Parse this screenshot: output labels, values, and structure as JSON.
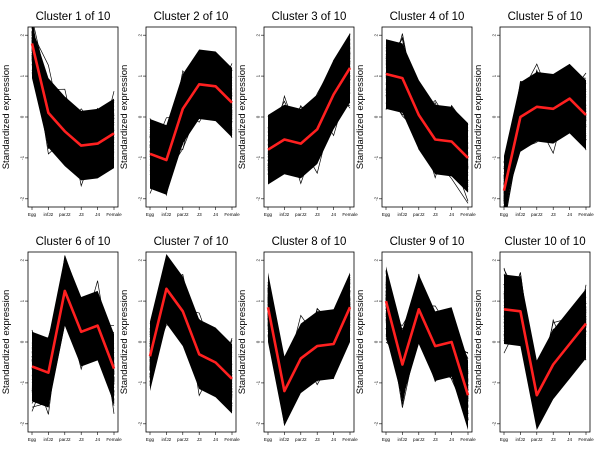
{
  "figure": {
    "ylabel": "Standardized expression"
  },
  "chart_data": [
    {
      "type": "line",
      "title": "Cluster 1 of 10",
      "ylabel": "Standardized expression",
      "categories": [
        "Egg",
        "infJ2",
        "parJ2",
        "J3",
        "J4",
        "Female"
      ],
      "yticks": [
        -2,
        -1,
        0,
        1,
        2
      ],
      "ylim": [
        -2.2,
        2.2
      ],
      "series": [
        {
          "name": "cluster mean",
          "color": "#ff2020",
          "values": [
            1.8,
            0.1,
            -0.35,
            -0.7,
            -0.65,
            -0.4
          ]
        }
      ]
    },
    {
      "type": "line",
      "title": "Cluster 2 of 10",
      "ylabel": "Standardized expression",
      "categories": [
        "Egg",
        "infJ2",
        "parJ2",
        "J3",
        "J4",
        "Female"
      ],
      "yticks": [
        -2,
        -1,
        0,
        1,
        2
      ],
      "ylim": [
        -2.2,
        2.2
      ],
      "series": [
        {
          "name": "cluster mean",
          "color": "#ff2020",
          "values": [
            -0.9,
            -1.05,
            0.2,
            0.8,
            0.75,
            0.35
          ]
        }
      ]
    },
    {
      "type": "line",
      "title": "Cluster 3 of 10",
      "ylabel": "Standardized expression",
      "categories": [
        "Egg",
        "infJ2",
        "parJ2",
        "J3",
        "J4",
        "Female"
      ],
      "yticks": [
        -2,
        -1,
        0,
        1,
        2
      ],
      "ylim": [
        -2.2,
        2.2
      ],
      "series": [
        {
          "name": "cluster mean",
          "color": "#ff2020",
          "values": [
            -0.8,
            -0.55,
            -0.65,
            -0.3,
            0.55,
            1.2
          ]
        }
      ]
    },
    {
      "type": "line",
      "title": "Cluster 4 of 10",
      "ylabel": "Standardized expression",
      "categories": [
        "Egg",
        "infJ2",
        "parJ2",
        "J3",
        "J4",
        "Female"
      ],
      "yticks": [
        -2,
        -1,
        0,
        1,
        2
      ],
      "ylim": [
        -2.2,
        2.2
      ],
      "series": [
        {
          "name": "cluster mean",
          "color": "#ff2020",
          "values": [
            1.05,
            0.95,
            0.05,
            -0.55,
            -0.6,
            -1.0
          ]
        }
      ]
    },
    {
      "type": "line",
      "title": "Cluster 5 of 10",
      "ylabel": "Standardized expression",
      "categories": [
        "Egg",
        "infJ2",
        "parJ2",
        "J3",
        "J4",
        "Female"
      ],
      "yticks": [
        -2,
        -1,
        0,
        1,
        2
      ],
      "ylim": [
        -2.2,
        2.2
      ],
      "series": [
        {
          "name": "cluster mean",
          "color": "#ff2020",
          "values": [
            -1.8,
            0.0,
            0.25,
            0.2,
            0.45,
            0.05
          ]
        }
      ]
    },
    {
      "type": "line",
      "title": "Cluster 6 of 10",
      "ylabel": "Standardized expression",
      "categories": [
        "Egg",
        "infJ2",
        "parJ2",
        "J3",
        "J4",
        "Female"
      ],
      "yticks": [
        -2,
        -1,
        0,
        1,
        2
      ],
      "ylim": [
        -2.2,
        2.2
      ],
      "series": [
        {
          "name": "cluster mean",
          "color": "#ff2020",
          "values": [
            -0.6,
            -0.75,
            1.25,
            0.25,
            0.4,
            -0.65
          ]
        }
      ]
    },
    {
      "type": "line",
      "title": "Cluster 7 of 10",
      "ylabel": "Standardized expression",
      "categories": [
        "Egg",
        "infJ2",
        "parJ2",
        "J3",
        "J4",
        "Female"
      ],
      "yticks": [
        -2,
        -1,
        0,
        1,
        2
      ],
      "ylim": [
        -2.2,
        2.2
      ],
      "series": [
        {
          "name": "cluster mean",
          "color": "#ff2020",
          "values": [
            -0.35,
            1.3,
            0.75,
            -0.3,
            -0.5,
            -0.9
          ]
        }
      ]
    },
    {
      "type": "line",
      "title": "Cluster 8 of 10",
      "ylabel": "Standardized expression",
      "categories": [
        "Egg",
        "infJ2",
        "parJ2",
        "J3",
        "J4",
        "Female"
      ],
      "yticks": [
        -2,
        -1,
        0,
        1,
        2
      ],
      "ylim": [
        -2.2,
        2.2
      ],
      "series": [
        {
          "name": "cluster mean",
          "color": "#ff2020",
          "values": [
            0.85,
            -1.2,
            -0.4,
            -0.1,
            -0.05,
            0.85
          ]
        }
      ]
    },
    {
      "type": "line",
      "title": "Cluster 9 of 10",
      "ylabel": "Standardized expression",
      "categories": [
        "Egg",
        "infJ2",
        "parJ2",
        "J3",
        "J4",
        "Female"
      ],
      "yticks": [
        -2,
        -1,
        0,
        1,
        2
      ],
      "ylim": [
        -2.2,
        2.2
      ],
      "series": [
        {
          "name": "cluster mean",
          "color": "#ff2020",
          "values": [
            1.0,
            -0.55,
            0.8,
            -0.1,
            0.0,
            -1.3
          ]
        }
      ]
    },
    {
      "type": "line",
      "title": "Cluster 10 of 10",
      "ylabel": "Standardized expression",
      "categories": [
        "Egg",
        "infJ2",
        "parJ2",
        "J3",
        "J4",
        "Female"
      ],
      "yticks": [
        -2,
        -1,
        0,
        1,
        2
      ],
      "ylim": [
        -2.2,
        2.2
      ],
      "series": [
        {
          "name": "cluster mean",
          "color": "#ff2020",
          "values": [
            0.8,
            0.75,
            -1.3,
            -0.55,
            -0.05,
            0.45
          ]
        }
      ]
    }
  ]
}
